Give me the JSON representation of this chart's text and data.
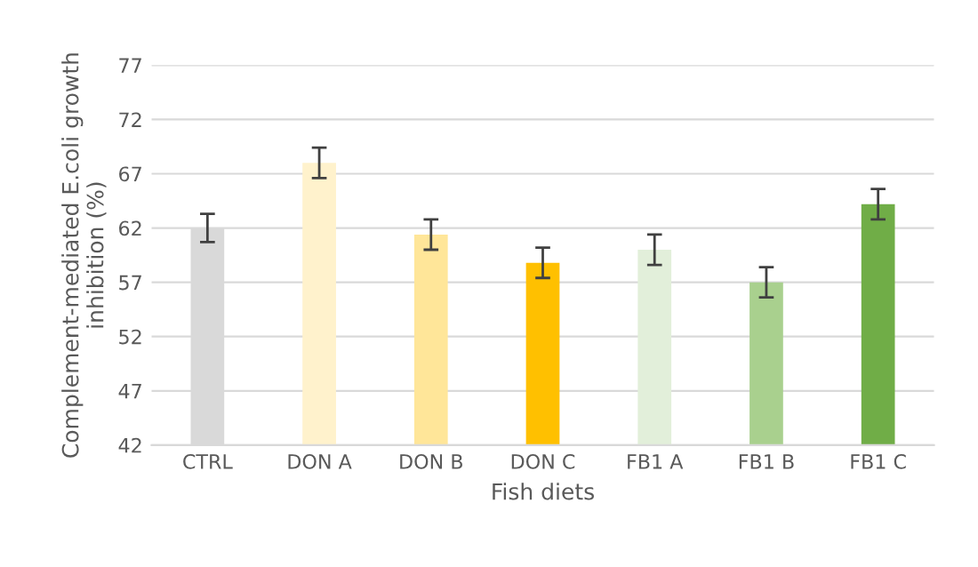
{
  "chart_data": {
    "type": "bar",
    "xlabel": "Fish diets",
    "ylabel": "Complement-mediated E.coli growth inhibition (%)",
    "categories": [
      "CTRL",
      "DON A",
      "DON B",
      "DON C",
      "FB1 A",
      "FB1 B",
      "FB1 C"
    ],
    "values": [
      62.0,
      68.0,
      61.4,
      58.8,
      60.0,
      57.0,
      64.2
    ],
    "errors": [
      1.3,
      1.4,
      1.4,
      1.4,
      1.4,
      1.4,
      1.4
    ],
    "colors": [
      "#d9d9d9",
      "#fff2cc",
      "#ffe699",
      "#ffc000",
      "#e2efda",
      "#a9d08e",
      "#70ad47"
    ],
    "ylim": [
      42,
      77
    ],
    "yticks": [
      42,
      47,
      52,
      57,
      62,
      67,
      72,
      77
    ],
    "grid": "y",
    "legend": false
  }
}
